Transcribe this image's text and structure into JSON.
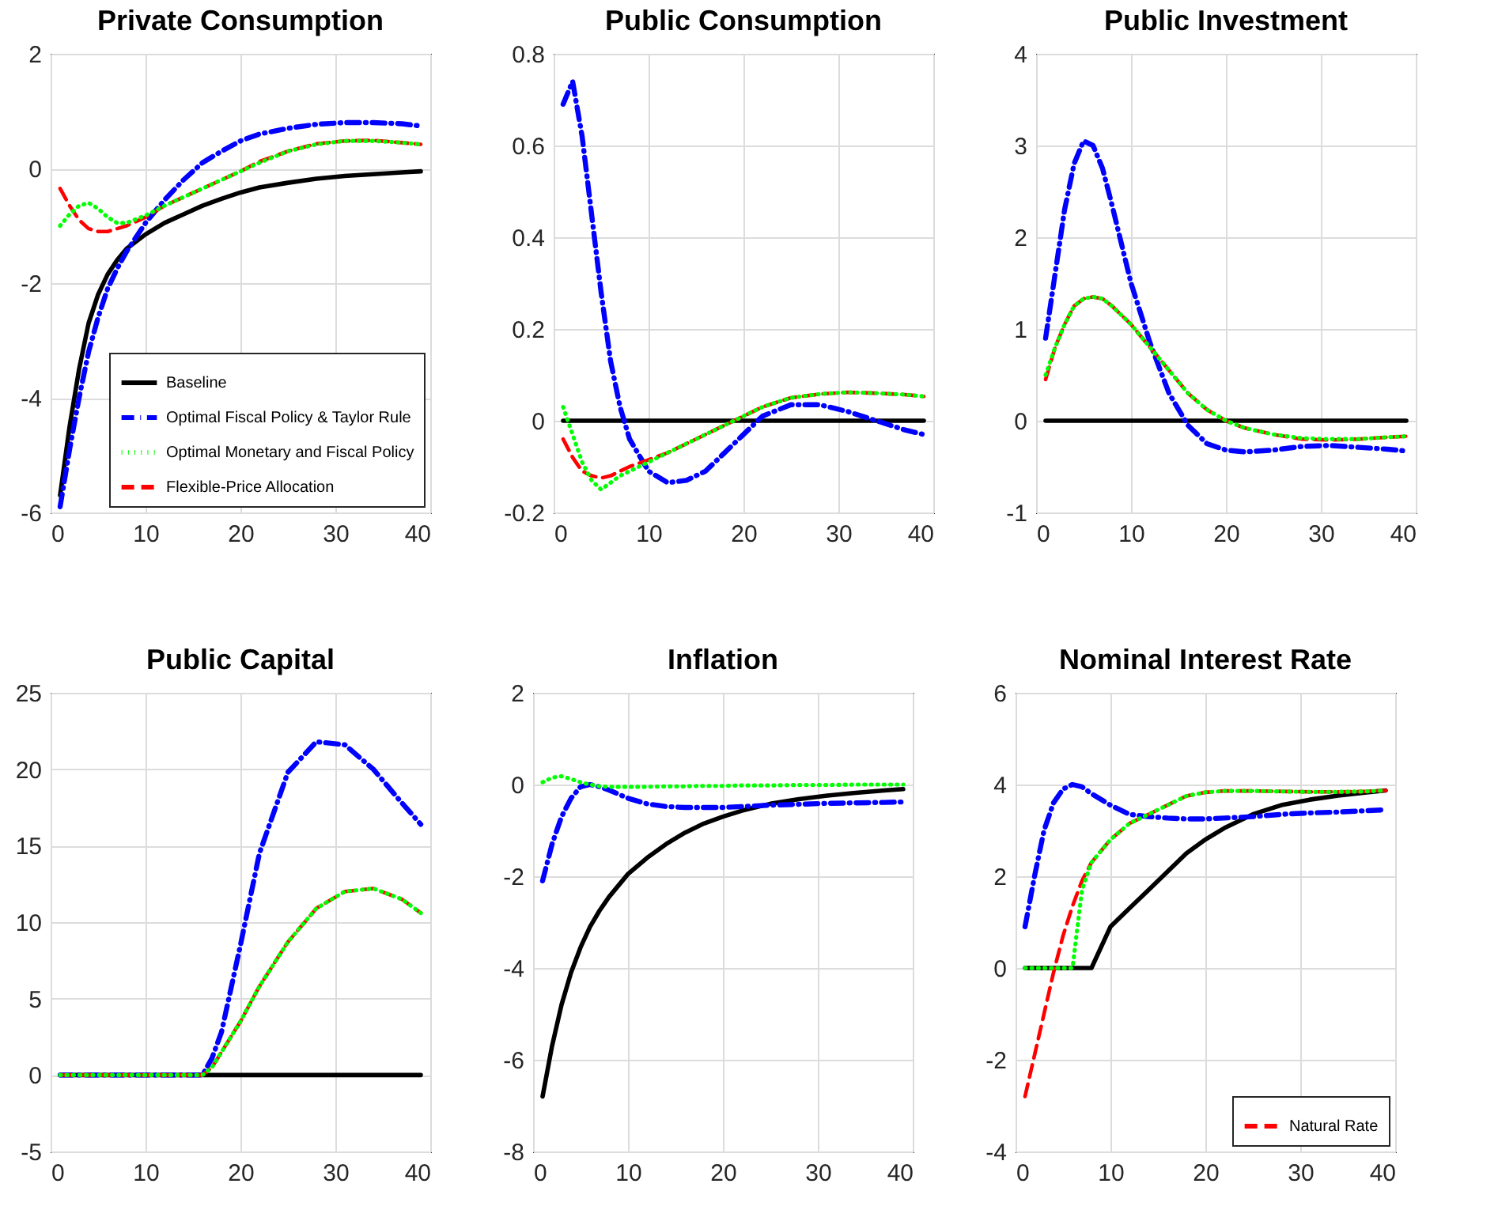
{
  "chart_data": [
    {
      "type": "line",
      "title": "Private Consumption",
      "x": [
        1,
        2,
        3,
        4,
        5,
        6,
        7,
        8,
        10,
        12,
        14,
        16,
        18,
        20,
        22,
        25,
        28,
        31,
        34,
        37,
        39
      ],
      "xlim": [
        0,
        40
      ],
      "xticks": [
        0,
        10,
        20,
        30,
        40
      ],
      "ylim": [
        -6,
        2
      ],
      "yticks": [
        -6,
        -4,
        -2,
        0,
        2
      ],
      "grid": true,
      "legend": "bottom right",
      "series": [
        {
          "name": "Baseline",
          "color": "#000000",
          "line_style": "solid",
          "values": [
            -5.7,
            -4.5,
            -3.5,
            -2.7,
            -2.2,
            -1.85,
            -1.6,
            -1.4,
            -1.15,
            -0.95,
            -0.8,
            -0.65,
            -0.53,
            -0.42,
            -0.33,
            -0.25,
            -0.18,
            -0.13,
            -0.1,
            -0.07,
            -0.05
          ]
        },
        {
          "name": "Optimal Fiscal Policy & Taylor Rule",
          "color": "#0000ff",
          "line_style": "dashdot",
          "values": [
            -5.9,
            -4.9,
            -4.0,
            -3.2,
            -2.6,
            -2.1,
            -1.75,
            -1.45,
            -0.95,
            -0.55,
            -0.2,
            0.1,
            0.3,
            0.48,
            0.6,
            0.7,
            0.77,
            0.8,
            0.8,
            0.78,
            0.74
          ]
        },
        {
          "name": "Optimal Monetary and Fiscal Policy",
          "color": "#00ff00",
          "line_style": "dotted",
          "values": [
            -1.0,
            -0.8,
            -0.65,
            -0.6,
            -0.7,
            -0.85,
            -0.95,
            -0.95,
            -0.82,
            -0.65,
            -0.5,
            -0.35,
            -0.2,
            -0.05,
            0.1,
            0.3,
            0.42,
            0.48,
            0.48,
            0.45,
            0.42
          ]
        },
        {
          "name": "Flexible-Price Allocation",
          "color": "#ff0000",
          "line_style": "dashed",
          "values": [
            -0.35,
            -0.65,
            -0.9,
            -1.05,
            -1.1,
            -1.1,
            -1.05,
            -1.0,
            -0.85,
            -0.65,
            -0.5,
            -0.35,
            -0.2,
            -0.05,
            0.12,
            0.3,
            0.43,
            0.48,
            0.49,
            0.45,
            0.42
          ]
        }
      ]
    },
    {
      "type": "line",
      "title": "Public Consumption",
      "x": [
        1,
        2,
        3,
        4,
        5,
        6,
        7,
        8,
        10,
        12,
        14,
        16,
        18,
        20,
        22,
        25,
        28,
        31,
        34,
        37,
        39
      ],
      "xlim": [
        0,
        40
      ],
      "xticks": [
        0,
        10,
        20,
        30,
        40
      ],
      "ylim": [
        -0.2,
        0.8
      ],
      "yticks": [
        -0.2,
        0,
        0.2,
        0.4,
        0.6,
        0.8
      ],
      "grid": true,
      "series": [
        {
          "color": "#000000",
          "line_style": "solid",
          "values": [
            0,
            0,
            0,
            0,
            0,
            0,
            0,
            0,
            0,
            0,
            0,
            0,
            0,
            0,
            0,
            0,
            0,
            0,
            0,
            0,
            0
          ]
        },
        {
          "color": "#0000ff",
          "line_style": "dashdot",
          "values": [
            0.69,
            0.74,
            0.62,
            0.45,
            0.28,
            0.13,
            0.03,
            -0.04,
            -0.11,
            -0.135,
            -0.13,
            -0.11,
            -0.07,
            -0.03,
            0.01,
            0.035,
            0.035,
            0.02,
            0.0,
            -0.02,
            -0.03
          ]
        },
        {
          "color": "#00ff00",
          "line_style": "dotted",
          "values": [
            0.03,
            -0.03,
            -0.09,
            -0.13,
            -0.15,
            -0.135,
            -0.12,
            -0.11,
            -0.09,
            -0.07,
            -0.05,
            -0.03,
            -0.01,
            0.01,
            0.03,
            0.05,
            0.058,
            0.062,
            0.06,
            0.057,
            0.053
          ]
        },
        {
          "color": "#ff0000",
          "line_style": "dashed",
          "values": [
            -0.04,
            -0.08,
            -0.11,
            -0.12,
            -0.125,
            -0.12,
            -0.11,
            -0.1,
            -0.085,
            -0.07,
            -0.05,
            -0.03,
            -0.01,
            0.01,
            0.03,
            0.05,
            0.058,
            0.062,
            0.06,
            0.057,
            0.053
          ]
        }
      ]
    },
    {
      "type": "line",
      "title": "Public Investment",
      "x": [
        1,
        2,
        3,
        4,
        5,
        6,
        7,
        8,
        10,
        12,
        14,
        16,
        18,
        20,
        22,
        25,
        28,
        31,
        34,
        37,
        39
      ],
      "xlim": [
        0,
        40
      ],
      "xticks": [
        0,
        10,
        20,
        30,
        40
      ],
      "ylim": [
        -1,
        4
      ],
      "yticks": [
        -1,
        0,
        1,
        2,
        3,
        4
      ],
      "grid": true,
      "series": [
        {
          "color": "#000000",
          "line_style": "solid",
          "values": [
            0,
            0,
            0,
            0,
            0,
            0,
            0,
            0,
            0,
            0,
            0,
            0,
            0,
            0,
            0,
            0,
            0,
            0,
            0,
            0,
            0
          ]
        },
        {
          "color": "#0000ff",
          "line_style": "dashdot",
          "values": [
            0.9,
            1.6,
            2.3,
            2.8,
            3.05,
            3.0,
            2.75,
            2.35,
            1.5,
            0.85,
            0.3,
            -0.05,
            -0.25,
            -0.32,
            -0.34,
            -0.32,
            -0.28,
            -0.27,
            -0.29,
            -0.31,
            -0.33
          ]
        },
        {
          "color": "#00ff00",
          "line_style": "dotted",
          "values": [
            0.5,
            0.8,
            1.05,
            1.25,
            1.33,
            1.35,
            1.33,
            1.25,
            1.05,
            0.8,
            0.55,
            0.3,
            0.12,
            0.0,
            -0.08,
            -0.15,
            -0.19,
            -0.2,
            -0.2,
            -0.18,
            -0.17
          ]
        },
        {
          "color": "#ff0000",
          "line_style": "dashed",
          "values": [
            0.45,
            0.8,
            1.05,
            1.25,
            1.33,
            1.35,
            1.33,
            1.25,
            1.05,
            0.8,
            0.55,
            0.3,
            0.12,
            0.0,
            -0.08,
            -0.15,
            -0.2,
            -0.21,
            -0.2,
            -0.18,
            -0.17
          ]
        }
      ]
    },
    {
      "type": "line",
      "title": "Public Capital",
      "x": [
        1,
        2,
        3,
        4,
        5,
        6,
        7,
        8,
        10,
        12,
        14,
        16,
        17,
        18,
        20,
        22,
        25,
        28,
        31,
        34,
        37,
        39
      ],
      "xlim": [
        0,
        40
      ],
      "xticks": [
        0,
        10,
        20,
        30,
        40
      ],
      "ylim": [
        -5,
        25
      ],
      "yticks": [
        -5,
        0,
        5,
        10,
        15,
        20,
        25
      ],
      "grid": true,
      "series": [
        {
          "color": "#000000",
          "line_style": "solid",
          "values": [
            0,
            0,
            0,
            0,
            0,
            0,
            0,
            0,
            0,
            0,
            0,
            0,
            0,
            0,
            0,
            0,
            0,
            0,
            0,
            0,
            0,
            0
          ]
        },
        {
          "color": "#0000ff",
          "line_style": "dashdot",
          "values": [
            0,
            0,
            0,
            0,
            0,
            0,
            0,
            0,
            0,
            0,
            0,
            0,
            1.1,
            2.8,
            8.5,
            14.5,
            19.8,
            21.8,
            21.6,
            20.0,
            17.8,
            16.4
          ]
        },
        {
          "color": "#00ff00",
          "line_style": "dotted",
          "values": [
            0,
            0,
            0,
            0,
            0,
            0,
            0,
            0,
            0,
            0,
            0,
            0,
            0.5,
            1.5,
            3.5,
            5.8,
            8.7,
            10.9,
            12.0,
            12.2,
            11.5,
            10.6
          ]
        },
        {
          "color": "#ff0000",
          "line_style": "dashed",
          "values": [
            0,
            0,
            0,
            0,
            0,
            0,
            0,
            0,
            0,
            0,
            0,
            0,
            0.5,
            1.5,
            3.5,
            5.8,
            8.7,
            10.9,
            12.0,
            12.2,
            11.5,
            10.6
          ]
        }
      ]
    },
    {
      "type": "line",
      "title": "Inflation",
      "x": [
        1,
        2,
        3,
        4,
        5,
        6,
        7,
        8,
        10,
        12,
        14,
        16,
        18,
        20,
        22,
        25,
        28,
        31,
        34,
        37,
        39
      ],
      "xlim": [
        0,
        40
      ],
      "xticks": [
        0,
        10,
        20,
        30,
        40
      ],
      "ylim": [
        -8,
        2
      ],
      "yticks": [
        -8,
        -6,
        -4,
        -2,
        0,
        2
      ],
      "grid": true,
      "series": [
        {
          "color": "#000000",
          "line_style": "solid",
          "values": [
            -6.8,
            -5.7,
            -4.8,
            -4.1,
            -3.55,
            -3.1,
            -2.75,
            -2.45,
            -1.95,
            -1.6,
            -1.3,
            -1.05,
            -0.85,
            -0.7,
            -0.57,
            -0.42,
            -0.32,
            -0.24,
            -0.18,
            -0.13,
            -0.1
          ]
        },
        {
          "color": "#0000ff",
          "line_style": "dashdot",
          "values": [
            -2.1,
            -1.3,
            -0.7,
            -0.3,
            -0.05,
            0.0,
            -0.05,
            -0.12,
            -0.3,
            -0.42,
            -0.48,
            -0.5,
            -0.5,
            -0.5,
            -0.48,
            -0.45,
            -0.43,
            -0.41,
            -0.4,
            -0.39,
            -0.38
          ]
        },
        {
          "color": "#00ff00",
          "line_style": "dotted",
          "values": [
            0.05,
            0.15,
            0.18,
            0.12,
            0.05,
            0.0,
            -0.04,
            -0.05,
            -0.05,
            -0.05,
            -0.04,
            -0.04,
            -0.03,
            -0.03,
            -0.02,
            -0.02,
            -0.01,
            -0.01,
            0.0,
            0.0,
            0.0
          ]
        }
      ]
    },
    {
      "type": "line",
      "title": "Nominal Interest Rate",
      "x": [
        1,
        2,
        3,
        4,
        5,
        6,
        7,
        8,
        10,
        12,
        14,
        16,
        18,
        20,
        22,
        25,
        28,
        31,
        34,
        37,
        39
      ],
      "xlim": [
        0,
        40
      ],
      "xticks": [
        0,
        10,
        20,
        30,
        40
      ],
      "ylim": [
        -4,
        6
      ],
      "yticks": [
        -4,
        -2,
        0,
        2,
        4,
        6
      ],
      "grid": true,
      "legend": "bottom right",
      "series": [
        {
          "color": "#000000",
          "line_style": "solid",
          "values": [
            0,
            0,
            0,
            0,
            0,
            0,
            0,
            0,
            0.9,
            1.3,
            1.7,
            2.1,
            2.5,
            2.8,
            3.05,
            3.35,
            3.55,
            3.67,
            3.76,
            3.83,
            3.87
          ]
        },
        {
          "color": "#0000ff",
          "line_style": "dashdot",
          "values": [
            0.9,
            2.0,
            3.0,
            3.6,
            3.9,
            4.0,
            3.95,
            3.8,
            3.55,
            3.35,
            3.3,
            3.27,
            3.25,
            3.25,
            3.27,
            3.3,
            3.35,
            3.38,
            3.4,
            3.43,
            3.45
          ]
        },
        {
          "name": "Natural Rate",
          "color": "#ff0000",
          "line_style": "dashed",
          "values": [
            -2.8,
            -1.9,
            -1.0,
            -0.1,
            0.7,
            1.35,
            1.9,
            2.3,
            2.8,
            3.15,
            3.35,
            3.55,
            3.75,
            3.83,
            3.86,
            3.86,
            3.85,
            3.84,
            3.84,
            3.85,
            3.87
          ]
        },
        {
          "color": "#00ff00",
          "line_style": "dotted",
          "values": [
            0,
            0,
            0,
            0,
            0,
            0,
            1.7,
            2.3,
            2.8,
            3.15,
            3.35,
            3.55,
            3.75,
            3.83,
            3.86,
            3.86,
            3.85,
            3.84,
            3.84,
            3.85,
            3.87
          ]
        }
      ]
    }
  ]
}
